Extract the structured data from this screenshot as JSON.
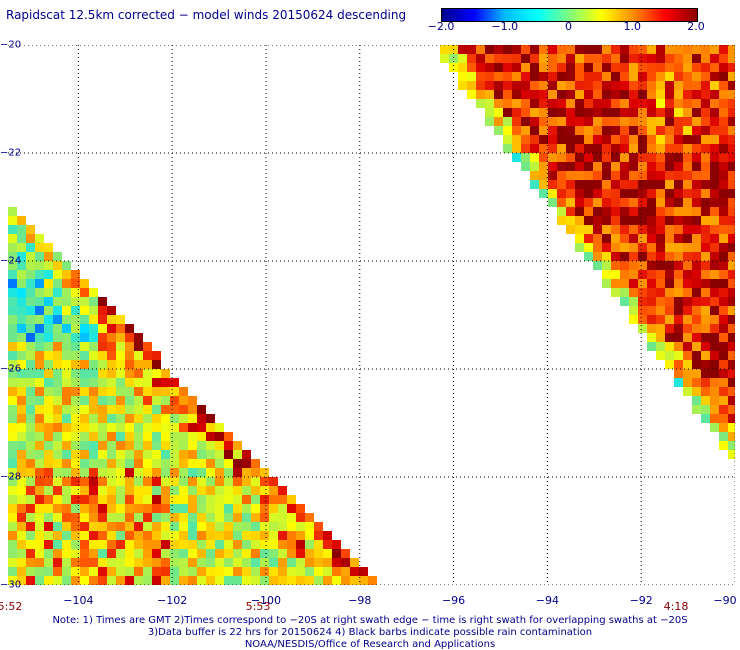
{
  "title": "Rapidscat 12.5km corrected − model winds 20150624 descending",
  "colorbar": {
    "labels": [
      "−2.0",
      "−1.0",
      "0",
      "1.0",
      "2.0"
    ],
    "values": [
      -2.0,
      -1.0,
      0,
      1.0,
      2.0
    ],
    "colors": [
      "#00008b",
      "#0000ff",
      "#00bfff",
      "#00ffff",
      "#7fff7f",
      "#ffff00",
      "#ff8c00",
      "#ff0000",
      "#8b0000"
    ]
  },
  "x_axis": {
    "ticks": [
      "−104",
      "−102",
      "−100",
      "−98",
      "−96",
      "−94",
      "−92",
      "−90"
    ],
    "values": [
      -104,
      -102,
      -100,
      -98,
      -96,
      -94,
      -92,
      -90
    ]
  },
  "y_axis": {
    "ticks": [
      "−20",
      "−22",
      "−24",
      "−26",
      "−28",
      "−30"
    ],
    "values": [
      -20,
      -22,
      -24,
      -26,
      -28,
      -30
    ]
  },
  "times": {
    "left": "5:52",
    "middle": "5:53",
    "right": "4:18"
  },
  "notes": [
    "Note: 1) Times are GMT 2)Times correspond to −20S at right swath edge − time is right swath for overlapping swaths at −20S",
    "3)Data buffer is 22 hrs for 20150624 4) Black barbs indicate possible rain contamination",
    "NOAA/NESDIS/Office of Research and Applications"
  ],
  "map": {
    "lon_range": [
      -105.5,
      -90
    ],
    "lat_range": [
      -20,
      -30
    ],
    "swaths": [
      {
        "name": "left swath",
        "region": "southwest triangle",
        "dominant": "cyan/green/yellow, warmer toward diagonal edge"
      },
      {
        "name": "right swath",
        "region": "northeast triangle",
        "dominant": "orange/red/dark red, cooler near diagonal edge"
      }
    ]
  }
}
